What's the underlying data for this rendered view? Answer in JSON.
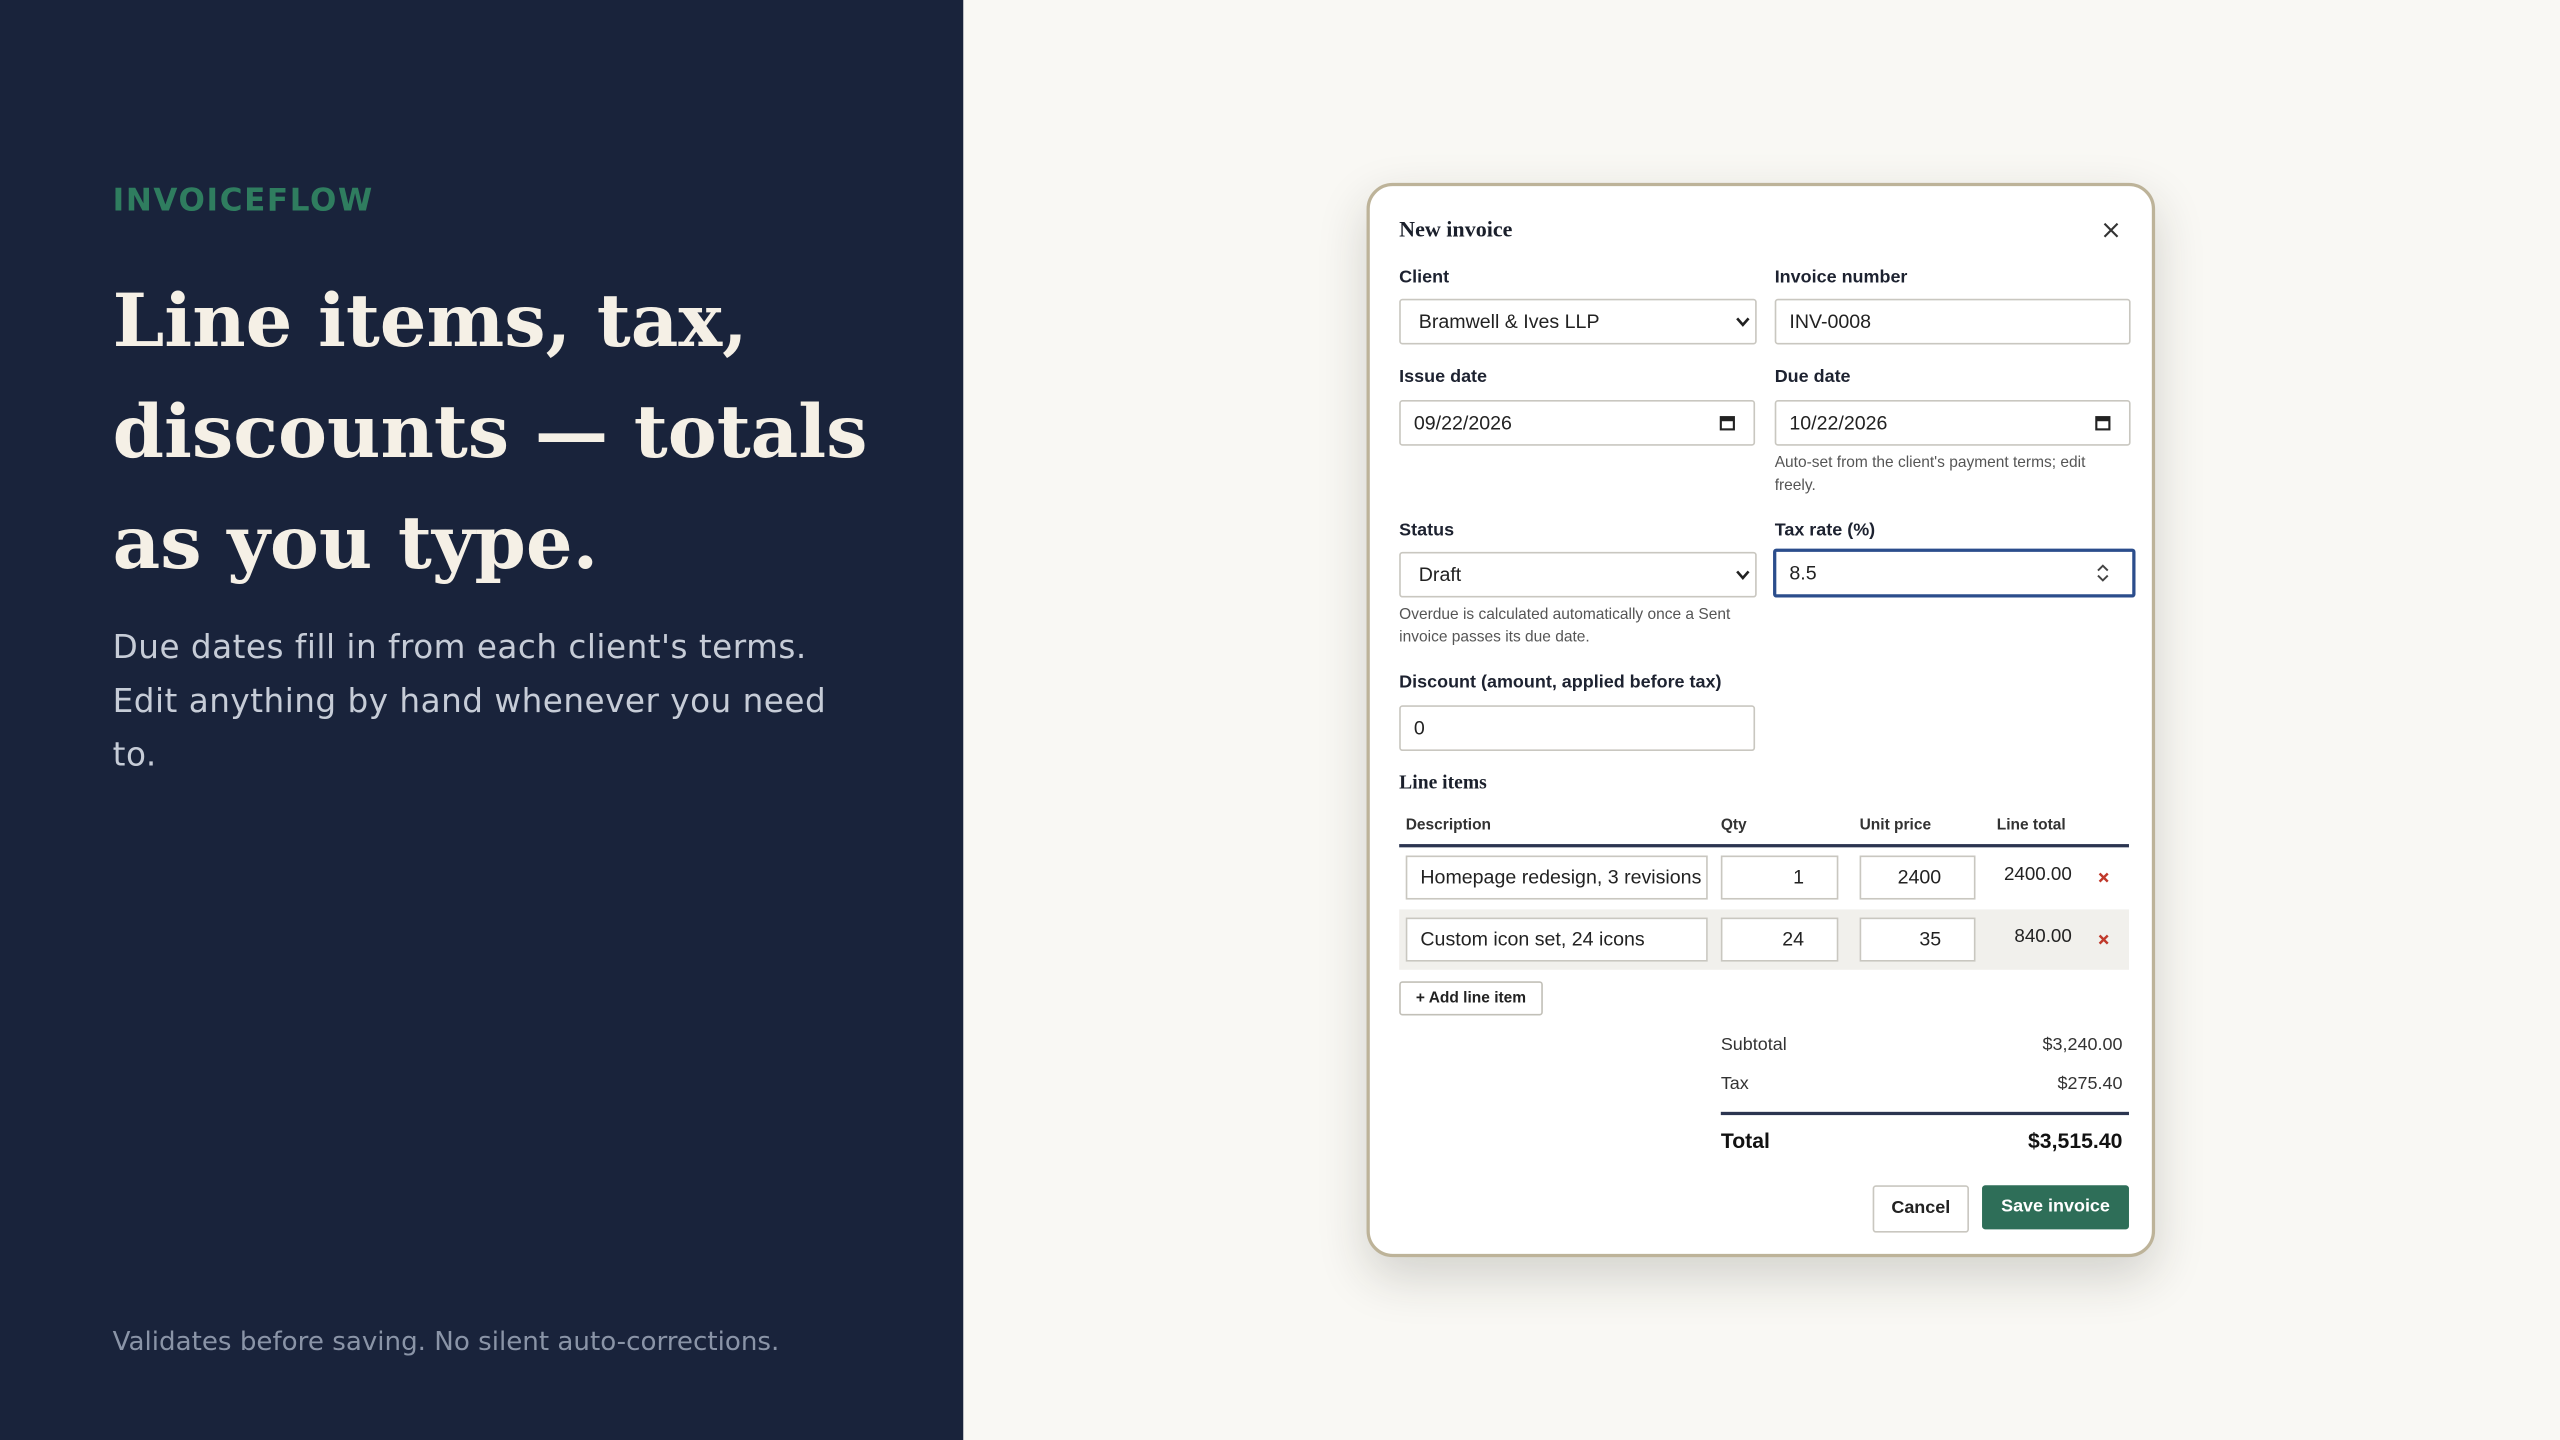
{
  "sidebar": {
    "brand": "INVOICEFLOW",
    "headline": "Line items, tax, discounts — totals as you type.",
    "description": "Due dates fill in from each client's terms. Edit anything by hand whenever you need to.",
    "footnote": "Validates before saving. No silent auto-corrections."
  },
  "dialog": {
    "title": "New invoice",
    "client": {
      "label": "Client",
      "value": "Bramwell & Ives LLP"
    },
    "invoice_number": {
      "label": "Invoice number",
      "value": "INV-0008"
    },
    "issue_date": {
      "label": "Issue date",
      "value": "09/22/2026"
    },
    "due_date": {
      "label": "Due date",
      "value": "10/22/2026",
      "hint": "Auto-set from the client's payment terms; edit freely."
    },
    "status": {
      "label": "Status",
      "value": "Draft",
      "hint": "Overdue is calculated automatically once a Sent invoice passes its due date."
    },
    "tax_rate": {
      "label": "Tax rate (%)",
      "value": "8.5"
    },
    "discount": {
      "label": "Discount (amount, applied before tax)",
      "value": "0"
    },
    "line_items": {
      "title": "Line items",
      "columns": [
        "Description",
        "Qty",
        "Unit price",
        "Line total"
      ],
      "rows": [
        [
          "Homepage redesign, 3 revisions",
          "1",
          "2400",
          "2400.00"
        ],
        [
          "Custom icon set, 24 icons",
          "24",
          "35",
          "840.00"
        ]
      ],
      "add_button": "+ Add line item"
    },
    "totals": [
      {
        "label": "Subtotal",
        "value": "$3,240.00"
      },
      {
        "label": "Tax",
        "value": "$275.40"
      },
      {
        "label": "Total",
        "value": "$3,515.40"
      }
    ],
    "buttons": {
      "cancel": "Cancel",
      "save": "Save invoice"
    }
  }
}
